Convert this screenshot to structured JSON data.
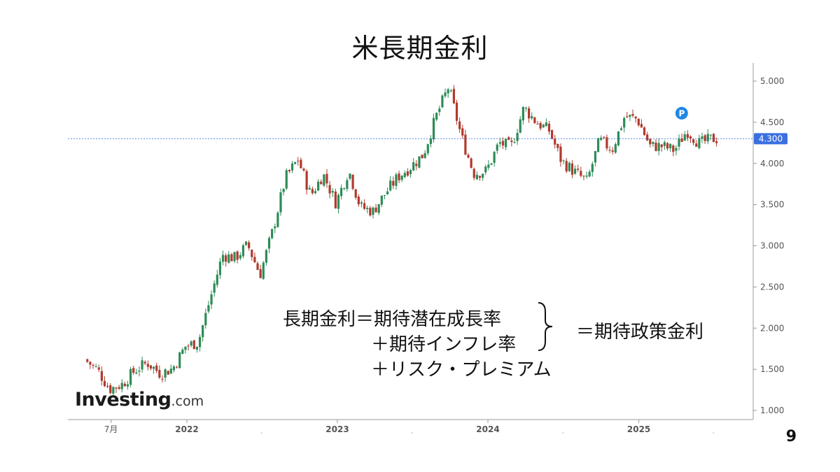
{
  "title": "米長期金利",
  "page_number": "9",
  "logo": {
    "main": "Investing",
    "suffix": ".com"
  },
  "formula": {
    "line1": "長期金利＝期待潜在成長率",
    "line2": "＋期待インフレ率",
    "line3": "＋リスク・プレミアム",
    "rhs": "＝期待政策金利"
  },
  "chart_data": {
    "type": "candlestick",
    "title": "米長期金利",
    "x_tick_labels": [
      "7月",
      "2022",
      "2023",
      "2024",
      "2025"
    ],
    "y_tick_labels": [
      "5.000",
      "4.500",
      "4.000",
      "3.500",
      "3.000",
      "2.500",
      "2.000",
      "1.500",
      "1.000"
    ],
    "ylim": [
      0.9,
      5.25
    ],
    "current_value": 4.3,
    "current_label": "4.300",
    "marker_label": "P",
    "colors": {
      "up": "#2e8b57",
      "down": "#b03a2e",
      "reference_line": "#5b8def",
      "badge": "#3b6fe0",
      "marker": "#1e88e5"
    },
    "series": [
      {
        "date": "2021-05",
        "value": 1.62
      },
      {
        "date": "2021-06",
        "value": 1.5
      },
      {
        "date": "2021-07",
        "value": 1.26
      },
      {
        "date": "2021-08",
        "value": 1.32
      },
      {
        "date": "2021-09",
        "value": 1.49
      },
      {
        "date": "2021-10",
        "value": 1.58
      },
      {
        "date": "2021-11",
        "value": 1.45
      },
      {
        "date": "2021-12",
        "value": 1.51
      },
      {
        "date": "2022-01",
        "value": 1.78
      },
      {
        "date": "2022-02",
        "value": 1.83
      },
      {
        "date": "2022-03",
        "value": 2.34
      },
      {
        "date": "2022-04",
        "value": 2.89
      },
      {
        "date": "2022-05",
        "value": 2.85
      },
      {
        "date": "2022-06",
        "value": 3.01
      },
      {
        "date": "2022-07",
        "value": 2.65
      },
      {
        "date": "2022-08",
        "value": 3.19
      },
      {
        "date": "2022-09",
        "value": 3.83
      },
      {
        "date": "2022-10",
        "value": 4.05
      },
      {
        "date": "2022-11",
        "value": 3.61
      },
      {
        "date": "2022-12",
        "value": 3.87
      },
      {
        "date": "2023-01",
        "value": 3.52
      },
      {
        "date": "2023-02",
        "value": 3.92
      },
      {
        "date": "2023-03",
        "value": 3.47
      },
      {
        "date": "2023-04",
        "value": 3.42
      },
      {
        "date": "2023-05",
        "value": 3.64
      },
      {
        "date": "2023-06",
        "value": 3.84
      },
      {
        "date": "2023-07",
        "value": 3.96
      },
      {
        "date": "2023-08",
        "value": 4.11
      },
      {
        "date": "2023-09",
        "value": 4.57
      },
      {
        "date": "2023-10",
        "value": 4.93
      },
      {
        "date": "2023-11",
        "value": 4.33
      },
      {
        "date": "2023-12",
        "value": 3.88
      },
      {
        "date": "2024-01",
        "value": 3.91
      },
      {
        "date": "2024-02",
        "value": 4.25
      },
      {
        "date": "2024-03",
        "value": 4.2
      },
      {
        "date": "2024-04",
        "value": 4.68
      },
      {
        "date": "2024-05",
        "value": 4.5
      },
      {
        "date": "2024-06",
        "value": 4.4
      },
      {
        "date": "2024-07",
        "value": 4.03
      },
      {
        "date": "2024-08",
        "value": 3.9
      },
      {
        "date": "2024-09",
        "value": 3.78
      },
      {
        "date": "2024-10",
        "value": 4.28
      },
      {
        "date": "2024-11",
        "value": 4.17
      },
      {
        "date": "2024-12",
        "value": 4.57
      },
      {
        "date": "2025-01",
        "value": 4.54
      },
      {
        "date": "2025-02",
        "value": 4.21
      },
      {
        "date": "2025-03",
        "value": 4.21
      },
      {
        "date": "2025-04",
        "value": 4.16
      },
      {
        "date": "2025-05",
        "value": 4.4
      },
      {
        "date": "2025-06",
        "value": 4.24
      },
      {
        "date": "2025-07",
        "value": 4.3
      }
    ]
  }
}
